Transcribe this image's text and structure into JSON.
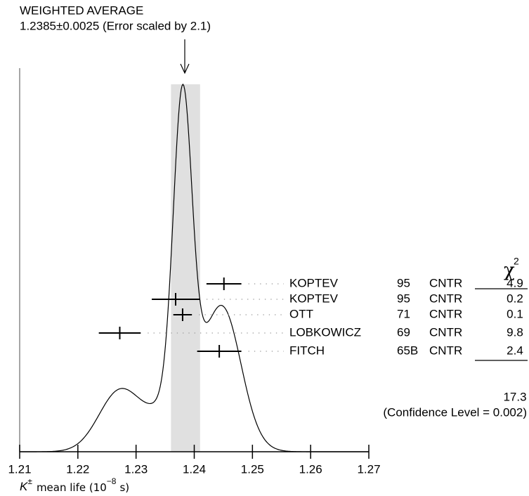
{
  "chart_data": {
    "type": "ideogram",
    "title": "WEIGHTED AVERAGE",
    "subtitle": "1.2385±0.0025 (Error scaled by 2.1)",
    "average": {
      "value": 1.2385,
      "error": 0.0025
    },
    "xlim": [
      1.21,
      1.27
    ],
    "xticks": [
      1.21,
      1.22,
      1.23,
      1.24,
      1.25,
      1.26,
      1.27
    ],
    "x_label": {
      "base": "K",
      "sup": "±",
      "text": "mean life (10",
      "exp": "−8",
      "tail": "s)"
    },
    "chi2_header": {
      "symbol": "χ",
      "sup": "2"
    },
    "measurements": [
      {
        "author": "KOPTEV",
        "year": "95",
        "tech": "CNTR",
        "value": 1.2451,
        "error": 0.003,
        "chi2": 4.9
      },
      {
        "author": "KOPTEV",
        "year": "95",
        "tech": "CNTR",
        "value": 1.2368,
        "error": 0.0041,
        "chi2": 0.2
      },
      {
        "author": "OTT",
        "year": "71",
        "tech": "CNTR",
        "value": 1.238,
        "error": 0.0016,
        "chi2": 0.1
      },
      {
        "author": "LOBKOWICZ",
        "year": "69",
        "tech": "CNTR",
        "value": 1.2272,
        "error": 0.0036,
        "chi2": 9.8
      },
      {
        "author": "FITCH",
        "year": "65B",
        "tech": "CNTR",
        "value": 1.2443,
        "error": 0.0038,
        "chi2": 2.4
      }
    ],
    "chi2_total": 17.3,
    "confidence": "(Confidence Level = 0.002)"
  }
}
